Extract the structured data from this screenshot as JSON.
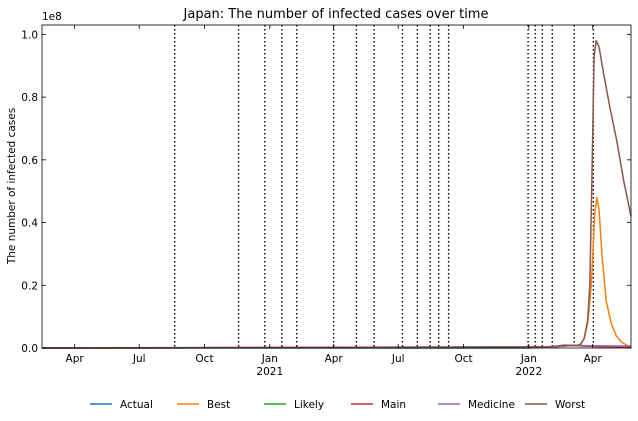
{
  "chart_data": {
    "type": "line",
    "title": "Japan: The number of infected cases over time",
    "xlabel": "",
    "ylabel": "The number of infected cases",
    "y_scale_label": "1e8",
    "xlim": [
      "2020-02-15",
      "2022-05-25"
    ],
    "ylim": [
      0,
      1.03
    ],
    "x_ticks": [
      {
        "date": "2020-04-01",
        "label": "Apr",
        "sub": ""
      },
      {
        "date": "2020-07-01",
        "label": "Jul",
        "sub": ""
      },
      {
        "date": "2020-10-01",
        "label": "Oct",
        "sub": ""
      },
      {
        "date": "2021-01-01",
        "label": "Jan",
        "sub": "2021"
      },
      {
        "date": "2021-04-01",
        "label": "Apr",
        "sub": ""
      },
      {
        "date": "2021-07-01",
        "label": "Jul",
        "sub": ""
      },
      {
        "date": "2021-10-01",
        "label": "Oct",
        "sub": ""
      },
      {
        "date": "2022-01-01",
        "label": "Jan",
        "sub": "2022"
      },
      {
        "date": "2022-04-01",
        "label": "Apr",
        "sub": ""
      }
    ],
    "y_ticks": [
      "0.0",
      "0.2",
      "0.4",
      "0.6",
      "0.8",
      "1.0"
    ],
    "y_tick_values": [
      0.0,
      0.2,
      0.4,
      0.6,
      0.8,
      1.0
    ],
    "change_dates": [
      "2020-08-20",
      "2020-11-18",
      "2020-12-25",
      "2021-01-18",
      "2021-02-08",
      "2021-04-01",
      "2021-05-03",
      "2021-05-28",
      "2021-07-07",
      "2021-07-28",
      "2021-08-15",
      "2021-08-27",
      "2021-09-10",
      "2021-12-31",
      "2022-01-10",
      "2022-01-20",
      "2022-02-03",
      "2022-03-06",
      "2022-04-02"
    ],
    "legend": {
      "position": "bottom",
      "columns": 6
    },
    "series": [
      {
        "name": "Actual",
        "color": "#1f77b4",
        "points": [
          [
            "2020-02-15",
            0.0
          ],
          [
            "2021-12-31",
            0.0
          ],
          [
            "2022-01-31",
            0.004
          ],
          [
            "2022-03-02",
            0.008
          ]
        ]
      },
      {
        "name": "Best",
        "color": "#ff7f0e",
        "points": [
          [
            "2020-02-15",
            0.0
          ],
          [
            "2022-01-31",
            0.003
          ],
          [
            "2022-02-20",
            0.009
          ],
          [
            "2022-03-10",
            0.008
          ],
          [
            "2022-03-15",
            0.012
          ],
          [
            "2022-03-20",
            0.03
          ],
          [
            "2022-03-25",
            0.08
          ],
          [
            "2022-03-30",
            0.2
          ],
          [
            "2022-04-04",
            0.43
          ],
          [
            "2022-04-07",
            0.48
          ],
          [
            "2022-04-10",
            0.44
          ],
          [
            "2022-04-14",
            0.3
          ],
          [
            "2022-04-20",
            0.15
          ],
          [
            "2022-04-27",
            0.08
          ],
          [
            "2022-05-04",
            0.04
          ],
          [
            "2022-05-11",
            0.02
          ],
          [
            "2022-05-18",
            0.01
          ],
          [
            "2022-05-25",
            0.003
          ]
        ]
      },
      {
        "name": "Likely",
        "color": "#2ca02c",
        "points": [
          [
            "2020-02-15",
            0.0
          ],
          [
            "2022-01-31",
            0.003
          ],
          [
            "2022-03-02",
            0.008
          ],
          [
            "2022-04-01",
            0.005
          ],
          [
            "2022-05-25",
            0.002
          ]
        ]
      },
      {
        "name": "Main",
        "color": "#d62728",
        "points": [
          [
            "2020-02-15",
            0.0
          ],
          [
            "2022-01-31",
            0.003
          ],
          [
            "2022-03-02",
            0.008
          ],
          [
            "2022-04-01",
            0.005
          ],
          [
            "2022-05-25",
            0.002
          ]
        ]
      },
      {
        "name": "Medicine",
        "color": "#9467bd",
        "points": [
          [
            "2020-02-15",
            0.0
          ],
          [
            "2022-01-31",
            0.003
          ],
          [
            "2022-03-02",
            0.008
          ],
          [
            "2022-04-01",
            0.007
          ],
          [
            "2022-05-25",
            0.006
          ]
        ]
      },
      {
        "name": "Worst",
        "color": "#8c564b",
        "points": [
          [
            "2020-02-15",
            0.0
          ],
          [
            "2022-01-31",
            0.004
          ],
          [
            "2022-02-20",
            0.009
          ],
          [
            "2022-03-10",
            0.008
          ],
          [
            "2022-03-15",
            0.012
          ],
          [
            "2022-03-20",
            0.03
          ],
          [
            "2022-03-25",
            0.09
          ],
          [
            "2022-03-28",
            0.2
          ],
          [
            "2022-03-31",
            0.55
          ],
          [
            "2022-04-03",
            0.93
          ],
          [
            "2022-04-06",
            0.98
          ],
          [
            "2022-04-10",
            0.96
          ],
          [
            "2022-04-16",
            0.88
          ],
          [
            "2022-04-25",
            0.77
          ],
          [
            "2022-05-05",
            0.66
          ],
          [
            "2022-05-15",
            0.53
          ],
          [
            "2022-05-25",
            0.42
          ]
        ]
      }
    ]
  }
}
